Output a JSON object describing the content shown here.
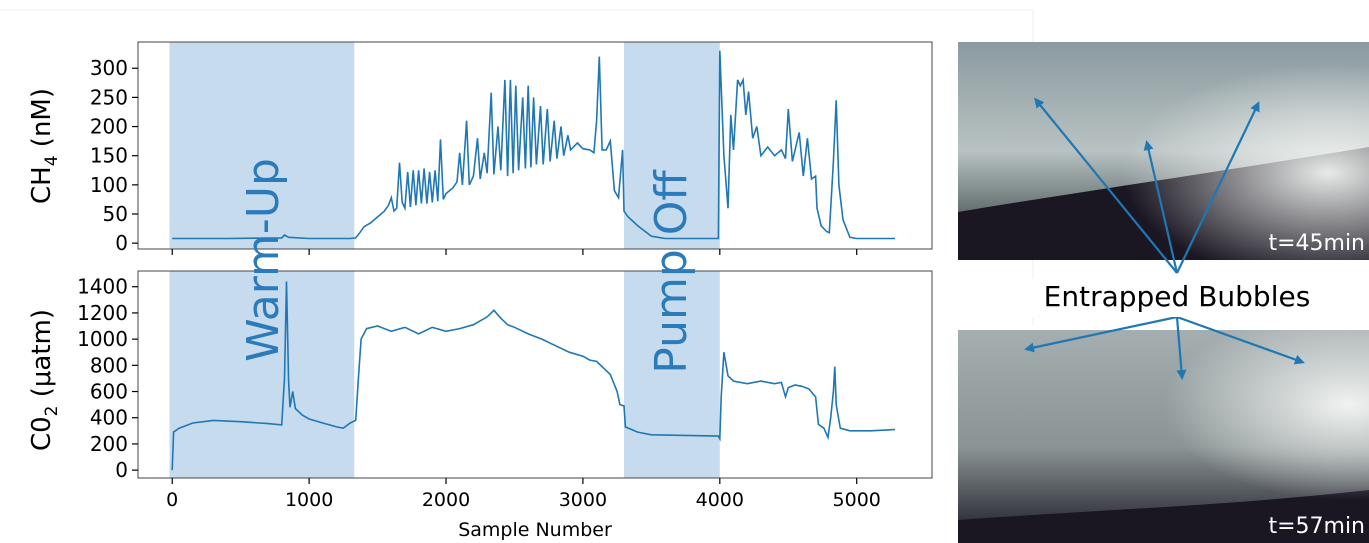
{
  "chart_data": [
    {
      "type": "line",
      "ylabel": "CH4 (nM)",
      "ylabel_main": "CH",
      "ylabel_sub": "4",
      "ylabel_tail": " (nM)",
      "xlim": [
        -250,
        5550
      ],
      "ylim": [
        -10,
        345
      ],
      "yticks": [
        "0",
        "50",
        "100",
        "150",
        "200",
        "250",
        "300"
      ],
      "ytick_values": [
        0,
        50,
        100,
        150,
        200,
        250,
        300
      ],
      "xtick_values": [
        0,
        1000,
        2000,
        3000,
        4000,
        5000
      ],
      "shaded_regions": [
        {
          "label": "Warm-Up",
          "x": [
            -20,
            1330
          ]
        },
        {
          "label": "Pump Off",
          "x": [
            3300,
            4000
          ]
        }
      ],
      "series": [
        {
          "color": "#1f77b4",
          "points": [
            [
              0,
              8
            ],
            [
              400,
              8
            ],
            [
              800,
              9
            ],
            [
              820,
              14
            ],
            [
              850,
              10
            ],
            [
              1000,
              8
            ],
            [
              1300,
              8
            ],
            [
              1340,
              9
            ],
            [
              1370,
              18
            ],
            [
              1400,
              28
            ],
            [
              1450,
              35
            ],
            [
              1500,
              45
            ],
            [
              1550,
              55
            ],
            [
              1580,
              65
            ],
            [
              1600,
              78
            ],
            [
              1620,
              55
            ],
            [
              1640,
              60
            ],
            [
              1660,
              138
            ],
            [
              1680,
              70
            ],
            [
              1700,
              60
            ],
            [
              1720,
              122
            ],
            [
              1740,
              62
            ],
            [
              1760,
              125
            ],
            [
              1780,
              65
            ],
            [
              1800,
              125
            ],
            [
              1820,
              68
            ],
            [
              1840,
              128
            ],
            [
              1860,
              68
            ],
            [
              1880,
              122
            ],
            [
              1900,
              70
            ],
            [
              1920,
              125
            ],
            [
              1940,
              72
            ],
            [
              1960,
              178
            ],
            [
              1980,
              75
            ],
            [
              2000,
              85
            ],
            [
              2050,
              95
            ],
            [
              2080,
              105
            ],
            [
              2100,
              155
            ],
            [
              2120,
              100
            ],
            [
              2150,
              210
            ],
            [
              2170,
              100
            ],
            [
              2200,
              115
            ],
            [
              2230,
              180
            ],
            [
              2250,
              110
            ],
            [
              2280,
              155
            ],
            [
              2300,
              120
            ],
            [
              2330,
              258
            ],
            [
              2350,
              118
            ],
            [
              2380,
              200
            ],
            [
              2400,
              125
            ],
            [
              2430,
              280
            ],
            [
              2450,
              115
            ],
            [
              2470,
              280
            ],
            [
              2490,
              120
            ],
            [
              2510,
              270
            ],
            [
              2530,
              125
            ],
            [
              2560,
              250
            ],
            [
              2580,
              128
            ],
            [
              2600,
              270
            ],
            [
              2620,
              130
            ],
            [
              2640,
              250
            ],
            [
              2660,
              135
            ],
            [
              2690,
              235
            ],
            [
              2710,
              135
            ],
            [
              2740,
              230
            ],
            [
              2760,
              140
            ],
            [
              2790,
              210
            ],
            [
              2810,
              145
            ],
            [
              2840,
              200
            ],
            [
              2860,
              150
            ],
            [
              2890,
              185
            ],
            [
              2910,
              160
            ],
            [
              2960,
              172
            ],
            [
              3000,
              162
            ],
            [
              3050,
              160
            ],
            [
              3080,
              155
            ],
            [
              3100,
              210
            ],
            [
              3120,
              320
            ],
            [
              3140,
              160
            ],
            [
              3170,
              160
            ],
            [
              3200,
              175
            ],
            [
              3230,
              90
            ],
            [
              3260,
              78
            ],
            [
              3290,
              160
            ],
            [
              3300,
              55
            ],
            [
              3330,
              45
            ],
            [
              3400,
              30
            ],
            [
              3500,
              12
            ],
            [
              3600,
              8
            ],
            [
              3990,
              8
            ],
            [
              4000,
              330
            ],
            [
              4030,
              150
            ],
            [
              4060,
              60
            ],
            [
              4080,
              220
            ],
            [
              4100,
              160
            ],
            [
              4130,
              280
            ],
            [
              4150,
              270
            ],
            [
              4170,
              280
            ],
            [
              4190,
              220
            ],
            [
              4210,
              260
            ],
            [
              4240,
              180
            ],
            [
              4270,
              200
            ],
            [
              4300,
              150
            ],
            [
              4350,
              165
            ],
            [
              4400,
              150
            ],
            [
              4450,
              160
            ],
            [
              4480,
              145
            ],
            [
              4500,
              230
            ],
            [
              4530,
              140
            ],
            [
              4580,
              190
            ],
            [
              4610,
              115
            ],
            [
              4640,
              180
            ],
            [
              4670,
              110
            ],
            [
              4700,
              115
            ],
            [
              4710,
              60
            ],
            [
              4740,
              30
            ],
            [
              4780,
              20
            ],
            [
              4800,
              18
            ],
            [
              4830,
              140
            ],
            [
              4850,
              245
            ],
            [
              4870,
              100
            ],
            [
              4900,
              40
            ],
            [
              4950,
              10
            ],
            [
              5000,
              8
            ],
            [
              5280,
              8
            ]
          ]
        }
      ]
    },
    {
      "type": "line",
      "ylabel": "C02 (μatm)",
      "ylabel_main": "C0",
      "ylabel_sub": "2",
      "ylabel_tail": " (μatm)",
      "xlabel": "Sample Number",
      "xlim": [
        -250,
        5550
      ],
      "ylim": [
        -60,
        1520
      ],
      "yticks": [
        "0",
        "200",
        "400",
        "600",
        "800",
        "1000",
        "1200",
        "1400"
      ],
      "ytick_values": [
        0,
        200,
        400,
        600,
        800,
        1000,
        1200,
        1400
      ],
      "xticks": [
        "0",
        "1000",
        "2000",
        "3000",
        "4000",
        "5000"
      ],
      "xtick_values": [
        0,
        1000,
        2000,
        3000,
        4000,
        5000
      ],
      "shaded_regions": [
        {
          "label": "Warm-Up",
          "x": [
            -20,
            1330
          ]
        },
        {
          "label": "Pump Off",
          "x": [
            3300,
            4000
          ]
        }
      ],
      "series": [
        {
          "color": "#1f77b4",
          "points": [
            [
              0,
              0
            ],
            [
              10,
              290
            ],
            [
              50,
              320
            ],
            [
              150,
              360
            ],
            [
              300,
              380
            ],
            [
              500,
              370
            ],
            [
              700,
              355
            ],
            [
              800,
              345
            ],
            [
              820,
              700
            ],
            [
              835,
              1440
            ],
            [
              850,
              680
            ],
            [
              860,
              480
            ],
            [
              880,
              600
            ],
            [
              900,
              470
            ],
            [
              950,
              420
            ],
            [
              1000,
              390
            ],
            [
              1100,
              360
            ],
            [
              1200,
              330
            ],
            [
              1250,
              320
            ],
            [
              1300,
              360
            ],
            [
              1340,
              380
            ],
            [
              1360,
              700
            ],
            [
              1380,
              1000
            ],
            [
              1420,
              1080
            ],
            [
              1500,
              1100
            ],
            [
              1600,
              1060
            ],
            [
              1700,
              1090
            ],
            [
              1800,
              1040
            ],
            [
              1900,
              1090
            ],
            [
              2000,
              1060
            ],
            [
              2100,
              1080
            ],
            [
              2200,
              1110
            ],
            [
              2300,
              1170
            ],
            [
              2350,
              1220
            ],
            [
              2400,
              1160
            ],
            [
              2450,
              1110
            ],
            [
              2500,
              1090
            ],
            [
              2600,
              1040
            ],
            [
              2700,
              1000
            ],
            [
              2800,
              950
            ],
            [
              2900,
              900
            ],
            [
              3000,
              870
            ],
            [
              3050,
              840
            ],
            [
              3100,
              830
            ],
            [
              3150,
              780
            ],
            [
              3200,
              730
            ],
            [
              3250,
              600
            ],
            [
              3270,
              500
            ],
            [
              3300,
              490
            ],
            [
              3310,
              330
            ],
            [
              3400,
              290
            ],
            [
              3500,
              270
            ],
            [
              3990,
              260
            ],
            [
              4000,
              240
            ],
            [
              4010,
              560
            ],
            [
              4030,
              900
            ],
            [
              4060,
              720
            ],
            [
              4100,
              680
            ],
            [
              4200,
              660
            ],
            [
              4300,
              680
            ],
            [
              4400,
              660
            ],
            [
              4450,
              670
            ],
            [
              4480,
              560
            ],
            [
              4500,
              630
            ],
            [
              4550,
              650
            ],
            [
              4600,
              640
            ],
            [
              4650,
              620
            ],
            [
              4700,
              560
            ],
            [
              4720,
              350
            ],
            [
              4760,
              320
            ],
            [
              4790,
              250
            ],
            [
              4810,
              400
            ],
            [
              4830,
              600
            ],
            [
              4840,
              790
            ],
            [
              4850,
              500
            ],
            [
              4880,
              320
            ],
            [
              4950,
              300
            ],
            [
              5100,
              300
            ],
            [
              5280,
              310
            ]
          ]
        }
      ]
    }
  ],
  "images": [
    {
      "time_label": "t=45min"
    },
    {
      "time_label": "t=57min"
    }
  ],
  "annotation": {
    "label": "Entrapped Bubbles"
  }
}
